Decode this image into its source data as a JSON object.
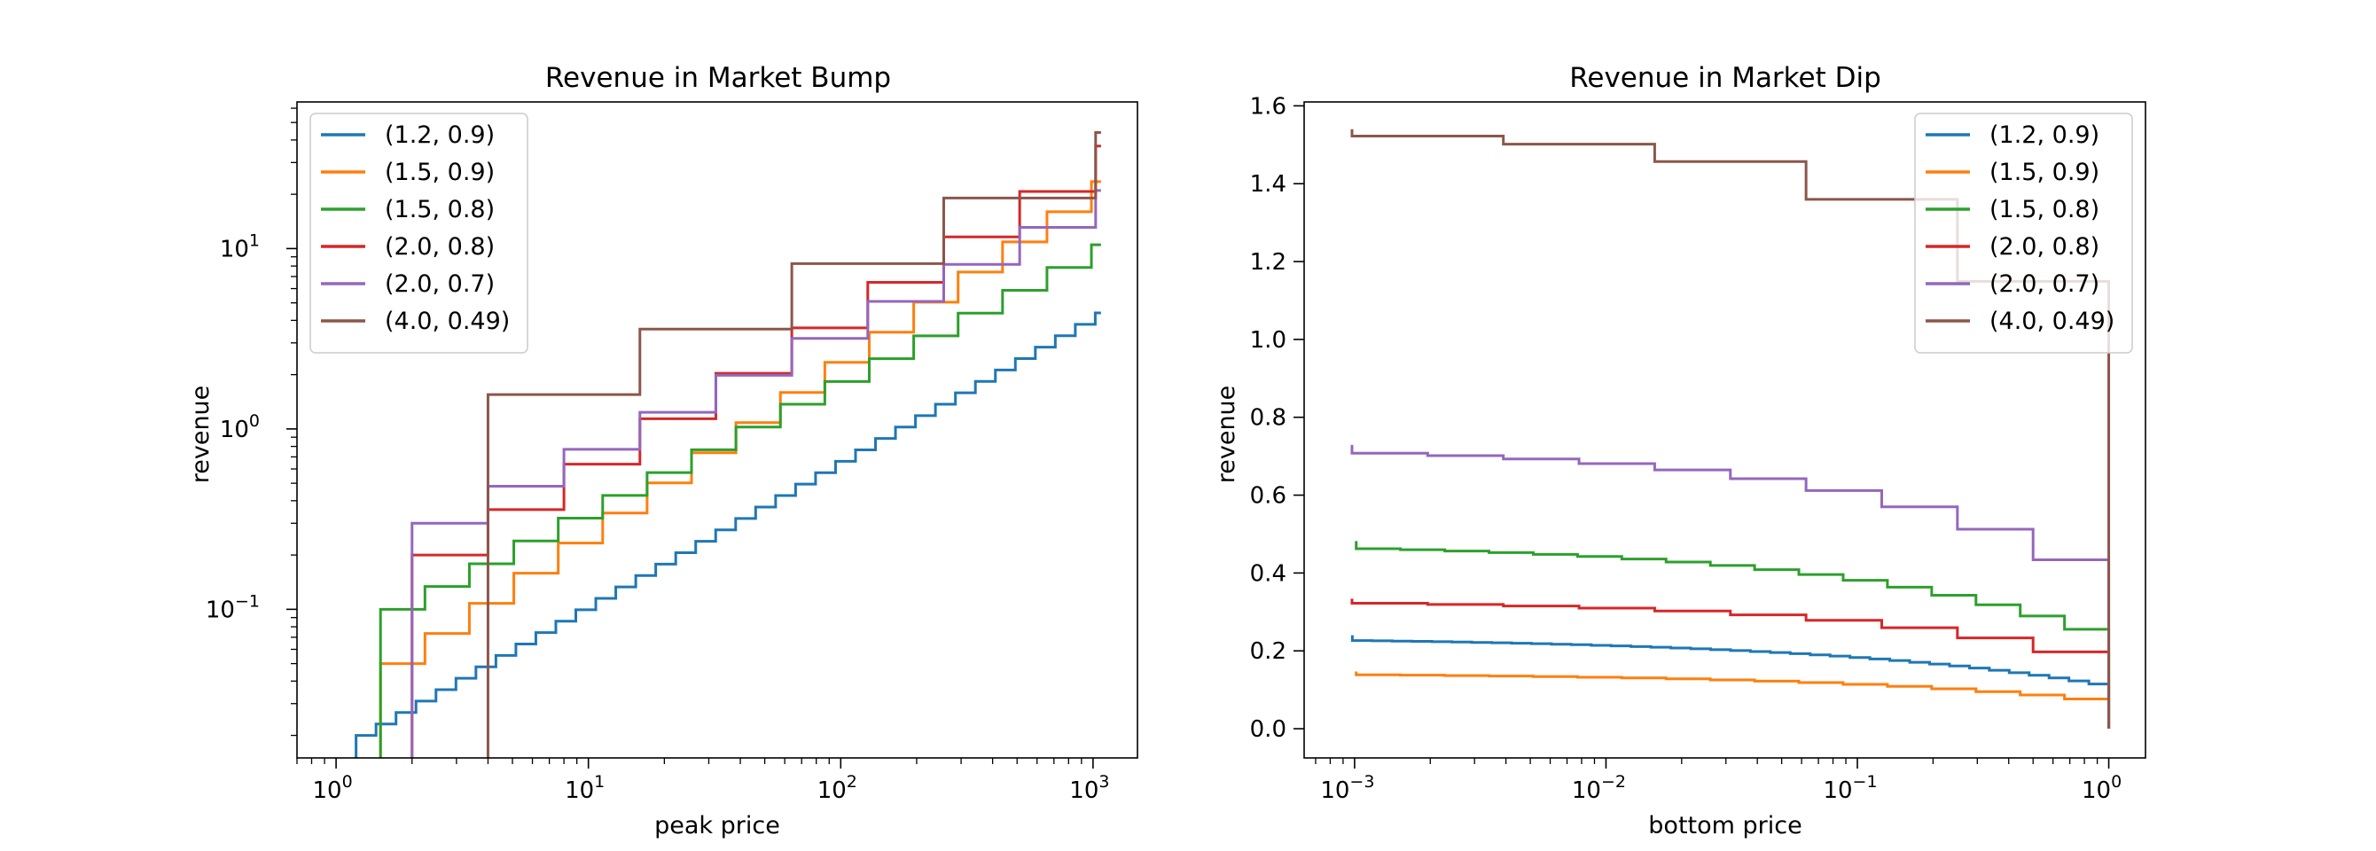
{
  "chart_data": [
    {
      "type": "line",
      "title": "Revenue in Market Bump",
      "xlabel": "peak price",
      "ylabel": "revenue",
      "xscale": "log",
      "yscale": "log",
      "xlim": [
        0.7,
        1500
      ],
      "ylim": [
        0.015,
        65
      ],
      "xticks": [
        {
          "v": 1,
          "base": "10",
          "exp": "0"
        },
        {
          "v": 10,
          "base": "10",
          "exp": "1"
        },
        {
          "v": 100,
          "base": "10",
          "exp": "2"
        },
        {
          "v": 1000,
          "base": "10",
          "exp": "3"
        }
      ],
      "yticks": [
        {
          "v": 0.1,
          "base": "10",
          "exp": "−1"
        },
        {
          "v": 1,
          "base": "10",
          "exp": "0"
        },
        {
          "v": 10,
          "base": "10",
          "exp": "1"
        }
      ],
      "legend": "upper left",
      "grid": false,
      "series": [
        {
          "name": "(1.2, 0.9)",
          "color": "#1f77b4",
          "ratio": 1.2,
          "start": 0.02,
          "final": 4.4
        },
        {
          "name": "(1.5, 0.9)",
          "color": "#ff7f0e",
          "ratio": 1.5,
          "start": 0.05,
          "final": 23.5
        },
        {
          "name": "(1.5, 0.8)",
          "color": "#2ca02c",
          "ratio": 1.5,
          "start": 0.1,
          "final": 10.5
        },
        {
          "name": "(2.0, 0.8)",
          "color": "#d62728",
          "ratio": 2.0,
          "start": 0.2,
          "final": 37.0
        },
        {
          "name": "(2.0, 0.7)",
          "color": "#9467bd",
          "ratio": 2.0,
          "start": 0.3,
          "final": 21.0
        },
        {
          "name": "(4.0, 0.49)",
          "color": "#8c564b",
          "ratio": 4.0,
          "start": 1.55,
          "final": 44.0
        }
      ]
    },
    {
      "type": "line",
      "title": "Revenue in Market Dip",
      "xlabel": "bottom price",
      "ylabel": "revenue",
      "xscale": "log",
      "yscale": "linear",
      "xlim": [
        0.00063,
        1.4
      ],
      "ylim": [
        -0.075,
        1.61
      ],
      "xticks": [
        {
          "v": 0.001,
          "base": "10",
          "exp": "−3"
        },
        {
          "v": 0.01,
          "base": "10",
          "exp": "−2"
        },
        {
          "v": 0.1,
          "base": "10",
          "exp": "−1"
        },
        {
          "v": 1,
          "base": "10",
          "exp": "0"
        }
      ],
      "yticks": [
        {
          "v": 0,
          "label": "0.0"
        },
        {
          "v": 0.2,
          "label": "0.2"
        },
        {
          "v": 0.4,
          "label": "0.4"
        },
        {
          "v": 0.6,
          "label": "0.6"
        },
        {
          "v": 0.8,
          "label": "0.8"
        },
        {
          "v": 1.0,
          "label": "1.0"
        },
        {
          "v": 1.2,
          "label": "1.2"
        },
        {
          "v": 1.4,
          "label": "1.4"
        },
        {
          "v": 1.6,
          "label": "1.6"
        }
      ],
      "legend": "upper right",
      "grid": false,
      "series": [
        {
          "name": "(1.2, 0.9)",
          "color": "#1f77b4",
          "ratio": 1.2,
          "start": 0.236,
          "end": 0.0
        },
        {
          "name": "(1.5, 0.9)",
          "color": "#ff7f0e",
          "ratio": 1.5,
          "start": 0.143,
          "end": 0.0
        },
        {
          "name": "(1.5, 0.8)",
          "color": "#2ca02c",
          "ratio": 1.5,
          "start": 0.478,
          "end": 0.0
        },
        {
          "name": "(2.0, 0.8)",
          "color": "#d62728",
          "ratio": 2.0,
          "start": 0.33,
          "end": 0.0
        },
        {
          "name": "(2.0, 0.7)",
          "color": "#9467bd",
          "ratio": 2.0,
          "start": 0.725,
          "end": 0.0
        },
        {
          "name": "(4.0, 0.49)",
          "color": "#8c564b",
          "ratio": 4.0,
          "start": 1.54,
          "end": 0.0
        }
      ]
    }
  ]
}
